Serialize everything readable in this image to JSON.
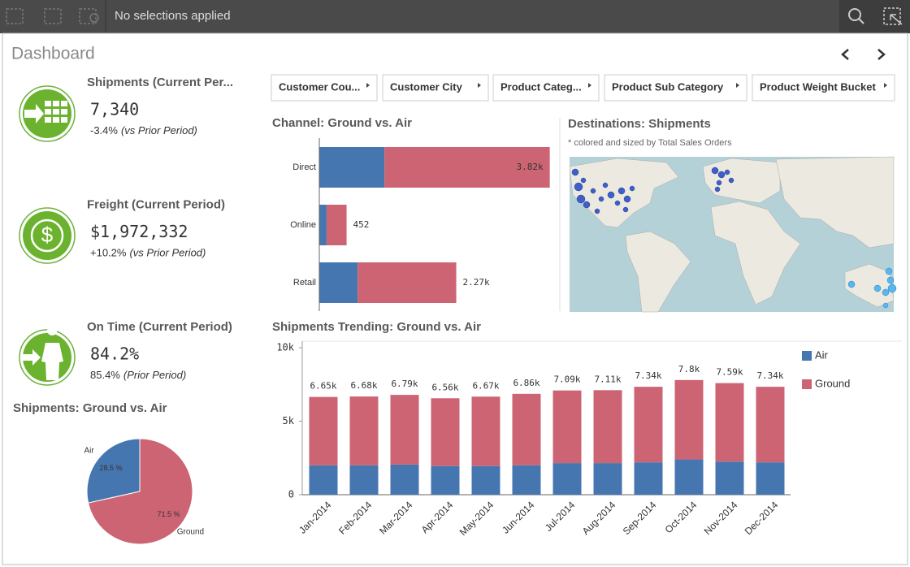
{
  "toolbar": {
    "selection_status": "No selections applied"
  },
  "header": {
    "title": "Dashboard"
  },
  "filters": [
    "Customer Cou...",
    "Customer City",
    "Product Categ...",
    "Product Sub Category",
    "Product Weight Bucket"
  ],
  "kpis": [
    {
      "title": "Shipments (Current Per...",
      "value": "7,340",
      "change": "-3.4%",
      "note": "(vs Prior Period)"
    },
    {
      "title": "Freight (Current Period)",
      "value": "$1,972,332",
      "change": "+10.2%",
      "note": "(vs Prior Period)"
    },
    {
      "title": "On Time (Current Period)",
      "value": "84.2%",
      "change": "85.4%",
      "note": "(Prior Period)"
    }
  ],
  "map": {
    "title": "Destinations: Shipments",
    "subtitle": "* colored and sized by Total Sales Orders"
  },
  "chart_data": [
    {
      "type": "pie",
      "title": "Shipments: Ground vs. Air",
      "categories": [
        "Air",
        "Ground"
      ],
      "values": [
        28.5,
        71.5
      ],
      "value_labels": [
        "28.5 %",
        "71.5 %"
      ],
      "colors": [
        "#4676b0",
        "#cd6473"
      ]
    },
    {
      "type": "hbar",
      "title": "Channel: Ground vs. Air",
      "categories": [
        "Direct",
        "Online",
        "Retail"
      ],
      "series": [
        {
          "color": "#4676b0",
          "values": [
            1080,
            120,
            635
          ]
        },
        {
          "color": "#cd6473",
          "values": [
            2740,
            332,
            1635
          ]
        }
      ],
      "totals": [
        3820,
        452,
        2270
      ],
      "total_labels": [
        "3.82k",
        "452",
        "2.27k"
      ],
      "xlim": [
        0,
        4000
      ]
    },
    {
      "type": "stacked_bar",
      "title": "Shipments Trending: Ground vs. Air",
      "categories": [
        "Jan-2014",
        "Feb-2014",
        "Mar-2014",
        "Apr-2014",
        "May-2014",
        "Jun-2014",
        "Jul-2014",
        "Aug-2014",
        "Sep-2014",
        "Oct-2014",
        "Nov-2014",
        "Dec-2014"
      ],
      "series": [
        {
          "name": "Air",
          "color": "#4676b0",
          "values": [
            2000,
            2000,
            2050,
            1950,
            1950,
            2000,
            2150,
            2150,
            2200,
            2400,
            2250,
            2200
          ]
        },
        {
          "name": "Ground",
          "color": "#cd6473",
          "values": [
            4650,
            4680,
            4740,
            4610,
            4720,
            4860,
            4940,
            4960,
            5140,
            5400,
            5340,
            5140
          ]
        }
      ],
      "totals": [
        6650,
        6680,
        6790,
        6560,
        6670,
        6860,
        7090,
        7110,
        7340,
        7800,
        7590,
        7340
      ],
      "total_labels": [
        "6.65k",
        "6.68k",
        "6.79k",
        "6.56k",
        "6.67k",
        "6.86k",
        "7.09k",
        "7.11k",
        "7.34k",
        "7.8k",
        "7.59k",
        "7.34k"
      ],
      "ylim": [
        0,
        10000
      ],
      "yticks": [
        0,
        {
          "value": 5000,
          "label": "5k"
        },
        {
          "value": 10000,
          "label": "10k"
        }
      ],
      "legend": "top-right"
    }
  ]
}
